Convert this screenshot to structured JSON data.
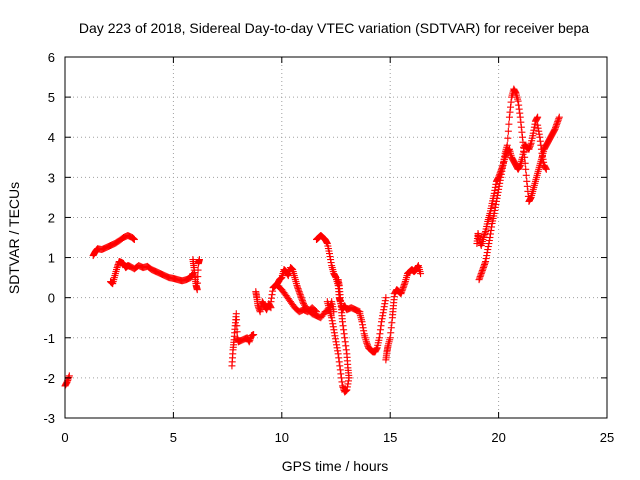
{
  "chart_data": {
    "type": "scatter",
    "title": "Day 223 of 2018, Sidereal Day-to-day VTEC variation (SDTVAR) for receiver bepa",
    "xlabel": "GPS time / hours",
    "ylabel": "SDTVAR / TECUs",
    "xlim": [
      0,
      25
    ],
    "ylim": [
      -3,
      6
    ],
    "xticks": [
      0,
      5,
      10,
      15,
      20,
      25
    ],
    "yticks": [
      -3,
      -2,
      -1,
      0,
      1,
      2,
      3,
      4,
      5,
      6
    ],
    "grid": true,
    "marker": "plus",
    "color": "#ff0000",
    "series": [
      {
        "name": "SDTVAR",
        "segments": [
          [
            [
              0.0,
              -2.2
            ],
            [
              0.1,
              -2.1
            ],
            [
              0.2,
              -1.95
            ]
          ],
          [
            [
              1.3,
              1.05
            ],
            [
              1.4,
              1.15
            ],
            [
              1.5,
              1.22
            ],
            [
              1.7,
              1.2
            ],
            [
              1.9,
              1.25
            ],
            [
              2.1,
              1.3
            ],
            [
              2.3,
              1.35
            ],
            [
              2.5,
              1.42
            ],
            [
              2.7,
              1.5
            ],
            [
              2.9,
              1.55
            ],
            [
              3.1,
              1.5
            ],
            [
              3.2,
              1.45
            ]
          ],
          [
            [
              2.1,
              0.4
            ],
            [
              2.2,
              0.35
            ],
            [
              2.3,
              0.55
            ],
            [
              2.4,
              0.75
            ],
            [
              2.5,
              0.9
            ],
            [
              2.6,
              0.88
            ],
            [
              2.7,
              0.85
            ],
            [
              2.8,
              0.75
            ],
            [
              2.9,
              0.8
            ],
            [
              3.0,
              0.78
            ],
            [
              3.2,
              0.72
            ],
            [
              3.4,
              0.8
            ],
            [
              3.6,
              0.75
            ],
            [
              3.8,
              0.78
            ],
            [
              4.0,
              0.7
            ],
            [
              4.2,
              0.65
            ],
            [
              4.4,
              0.6
            ],
            [
              4.6,
              0.55
            ],
            [
              4.8,
              0.5
            ],
            [
              5.0,
              0.48
            ],
            [
              5.2,
              0.45
            ],
            [
              5.4,
              0.42
            ],
            [
              5.6,
              0.45
            ],
            [
              5.8,
              0.5
            ],
            [
              5.9,
              0.6
            ]
          ],
          [
            [
              5.9,
              0.95
            ],
            [
              5.95,
              0.75
            ],
            [
              6.0,
              0.5
            ],
            [
              6.05,
              0.3
            ],
            [
              6.1,
              0.2
            ],
            [
              6.15,
              0.85
            ],
            [
              6.2,
              0.95
            ]
          ],
          [
            [
              7.7,
              -1.7
            ],
            [
              7.75,
              -1.3
            ],
            [
              7.8,
              -1.05
            ],
            [
              7.85,
              -0.7
            ],
            [
              7.9,
              -0.4
            ],
            [
              7.95,
              -1.0
            ],
            [
              8.0,
              -1.1
            ],
            [
              8.2,
              -1.05
            ],
            [
              8.4,
              -1.0
            ],
            [
              8.5,
              -1.1
            ],
            [
              8.6,
              -0.95
            ],
            [
              8.7,
              -0.92
            ]
          ],
          [
            [
              8.8,
              0.15
            ],
            [
              8.85,
              0.0
            ],
            [
              8.9,
              -0.2
            ],
            [
              9.0,
              -0.35
            ],
            [
              9.1,
              -0.1
            ],
            [
              9.2,
              -0.2
            ],
            [
              9.3,
              -0.3
            ],
            [
              9.4,
              -0.15
            ],
            [
              9.5,
              -0.25
            ]
          ],
          [
            [
              9.5,
              -0.1
            ],
            [
              9.6,
              0.25
            ],
            [
              9.7,
              0.3
            ],
            [
              9.8,
              0.35
            ],
            [
              9.9,
              0.45
            ],
            [
              10.0,
              0.5
            ],
            [
              10.1,
              0.7
            ],
            [
              10.2,
              0.65
            ],
            [
              10.3,
              0.55
            ],
            [
              10.4,
              0.75
            ],
            [
              10.5,
              0.7
            ],
            [
              10.6,
              0.5
            ],
            [
              10.7,
              0.3
            ],
            [
              10.8,
              0.15
            ],
            [
              10.9,
              0.0
            ],
            [
              11.0,
              -0.15
            ],
            [
              11.2,
              -0.3
            ],
            [
              11.4,
              -0.4
            ],
            [
              11.6,
              -0.45
            ],
            [
              11.8,
              -0.5
            ],
            [
              12.0,
              -0.35
            ],
            [
              12.2,
              -0.3
            ],
            [
              12.3,
              -0.1
            ],
            [
              12.4,
              -0.35
            ]
          ],
          [
            [
              9.8,
              0.3
            ],
            [
              10.0,
              0.2
            ],
            [
              10.2,
              0.05
            ],
            [
              10.4,
              -0.1
            ],
            [
              10.6,
              -0.25
            ],
            [
              10.8,
              -0.35
            ],
            [
              11.0,
              -0.3
            ],
            [
              11.2,
              -0.35
            ],
            [
              11.4,
              -0.25
            ],
            [
              11.6,
              -0.35
            ]
          ],
          [
            [
              11.6,
              1.45
            ],
            [
              11.7,
              1.5
            ],
            [
              11.8,
              1.55
            ],
            [
              11.9,
              1.5
            ],
            [
              12.0,
              1.45
            ],
            [
              12.1,
              1.35
            ],
            [
              12.2,
              1.1
            ],
            [
              12.3,
              0.8
            ],
            [
              12.4,
              0.6
            ],
            [
              12.5,
              0.5
            ],
            [
              12.6,
              0.3
            ],
            [
              12.65,
              0.0
            ],
            [
              12.7,
              -0.1
            ],
            [
              12.8,
              -0.3
            ],
            [
              12.9,
              -0.2
            ],
            [
              13.0,
              -0.3
            ],
            [
              13.2,
              -0.25
            ],
            [
              13.4,
              -0.3
            ],
            [
              13.6,
              -0.35
            ]
          ],
          [
            [
              12.1,
              -0.1
            ],
            [
              12.2,
              -0.3
            ],
            [
              12.3,
              -0.5
            ],
            [
              12.4,
              -0.8
            ],
            [
              12.5,
              -1.1
            ],
            [
              12.6,
              -1.4
            ],
            [
              12.7,
              -1.8
            ],
            [
              12.8,
              -2.2
            ],
            [
              12.9,
              -2.35
            ],
            [
              13.0,
              -2.3
            ],
            [
              13.1,
              -2.0
            ]
          ],
          [
            [
              12.6,
              0.45
            ],
            [
              12.65,
              0.3
            ],
            [
              12.7,
              0.0
            ],
            [
              12.75,
              -0.3
            ],
            [
              12.8,
              -0.6
            ],
            [
              12.9,
              -1.0
            ],
            [
              13.0,
              -1.4
            ],
            [
              13.05,
              -1.75
            ],
            [
              13.1,
              -2.0
            ]
          ],
          [
            [
              13.6,
              -0.4
            ],
            [
              13.7,
              -0.6
            ],
            [
              13.8,
              -0.9
            ],
            [
              13.9,
              -1.1
            ],
            [
              14.0,
              -1.25
            ],
            [
              14.1,
              -1.3
            ],
            [
              14.2,
              -1.35
            ],
            [
              14.3,
              -1.35
            ],
            [
              14.4,
              -1.25
            ],
            [
              14.5,
              -1.0
            ],
            [
              14.6,
              -0.6
            ],
            [
              14.7,
              -0.3
            ],
            [
              14.8,
              0.0
            ]
          ],
          [
            [
              14.8,
              -1.55
            ],
            [
              14.85,
              -1.35
            ],
            [
              14.9,
              -1.2
            ],
            [
              15.0,
              -1.0
            ],
            [
              15.1,
              -0.5
            ],
            [
              15.15,
              -0.2
            ],
            [
              15.2,
              0.1
            ],
            [
              15.3,
              0.2
            ],
            [
              15.4,
              0.15
            ],
            [
              15.5,
              0.1
            ],
            [
              15.6,
              0.25
            ],
            [
              15.7,
              0.4
            ],
            [
              15.8,
              0.6
            ],
            [
              15.9,
              0.65
            ],
            [
              16.0,
              0.7
            ],
            [
              16.1,
              0.65
            ],
            [
              16.2,
              0.7
            ],
            [
              16.3,
              0.8
            ],
            [
              16.4,
              0.6
            ]
          ],
          [
            [
              19.0,
              1.35
            ],
            [
              19.05,
              1.6
            ],
            [
              19.1,
              1.45
            ],
            [
              19.2,
              1.3
            ],
            [
              19.3,
              1.5
            ],
            [
              19.4,
              1.65
            ],
            [
              19.5,
              1.9
            ],
            [
              19.6,
              2.1
            ],
            [
              19.7,
              2.35
            ],
            [
              19.8,
              2.6
            ],
            [
              19.9,
              2.9
            ],
            [
              20.0,
              3.0
            ],
            [
              20.1,
              3.15
            ],
            [
              20.2,
              3.3
            ],
            [
              20.3,
              3.5
            ],
            [
              20.4,
              3.65
            ],
            [
              20.5,
              3.7
            ],
            [
              20.6,
              3.5
            ],
            [
              20.7,
              3.4
            ],
            [
              20.8,
              3.3
            ],
            [
              20.9,
              3.2
            ],
            [
              21.0,
              3.3
            ],
            [
              21.1,
              3.5
            ],
            [
              21.2,
              3.8
            ],
            [
              21.3,
              3.75
            ],
            [
              21.4,
              3.7
            ],
            [
              21.5,
              3.85
            ],
            [
              21.6,
              4.1
            ],
            [
              21.7,
              4.4
            ],
            [
              21.8,
              4.5
            ]
          ],
          [
            [
              19.1,
              0.45
            ],
            [
              19.2,
              0.6
            ],
            [
              19.3,
              0.75
            ],
            [
              19.4,
              0.9
            ],
            [
              19.5,
              1.2
            ],
            [
              19.6,
              1.5
            ],
            [
              19.7,
              1.85
            ],
            [
              19.8,
              2.1
            ],
            [
              19.9,
              2.4
            ],
            [
              20.0,
              2.7
            ],
            [
              20.1,
              3.0
            ],
            [
              20.2,
              3.3
            ],
            [
              20.3,
              3.6
            ],
            [
              20.4,
              3.8
            ],
            [
              20.5,
              4.5
            ],
            [
              20.6,
              5.0
            ],
            [
              20.7,
              5.2
            ],
            [
              20.8,
              5.1
            ],
            [
              20.9,
              4.9
            ],
            [
              21.0,
              4.5
            ],
            [
              21.1,
              4.0
            ],
            [
              21.2,
              3.5
            ],
            [
              21.3,
              2.9
            ],
            [
              21.4,
              2.4
            ],
            [
              21.5,
              2.5
            ],
            [
              21.6,
              2.7
            ],
            [
              21.7,
              2.9
            ],
            [
              21.8,
              3.1
            ],
            [
              21.9,
              3.3
            ],
            [
              22.0,
              3.5
            ],
            [
              22.1,
              3.7
            ],
            [
              22.2,
              3.8
            ],
            [
              22.3,
              3.9
            ],
            [
              22.4,
              4.0
            ],
            [
              22.5,
              4.1
            ],
            [
              22.6,
              4.2
            ],
            [
              22.7,
              4.35
            ],
            [
              22.8,
              4.5
            ]
          ],
          [
            [
              21.8,
              4.3
            ],
            [
              21.9,
              4.0
            ],
            [
              22.0,
              3.6
            ],
            [
              22.1,
              3.3
            ],
            [
              22.2,
              3.2
            ]
          ]
        ]
      }
    ]
  }
}
